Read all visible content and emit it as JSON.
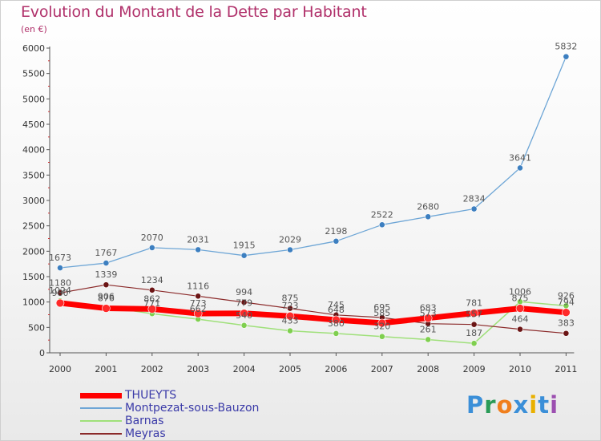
{
  "header": {
    "title": "Evolution du Montant de la Dette par Habitant",
    "subtitle": "(en €)"
  },
  "logo": {
    "text": "Proxiti"
  },
  "chart_data": {
    "type": "line",
    "title": "Evolution du Montant de la Dette par Habitant",
    "subtitle": "(en €)",
    "x": [
      "2000",
      "2001",
      "2002",
      "2003",
      "2004",
      "2005",
      "2006",
      "2007",
      "2008",
      "2009",
      "2010",
      "2011"
    ],
    "ylim": [
      0,
      6000
    ],
    "yticks": [
      0,
      500,
      1000,
      1500,
      2000,
      2500,
      3000,
      3500,
      4000,
      4500,
      5000,
      5500,
      6000
    ],
    "grid": false,
    "legend_position": "bottom-left",
    "series": [
      {
        "name": "Montpezat-sous-Bauzon",
        "color": "#6ea6d6",
        "marker": "#3d7fc0",
        "width": 1.3,
        "values": [
          1673,
          1767,
          2070,
          2031,
          1915,
          2029,
          2198,
          2522,
          2680,
          2834,
          3641,
          5832
        ],
        "labels": [
          "1673",
          "1767",
          "2070",
          "2031",
          "1915",
          "2029",
          "2198",
          "2522",
          "2680",
          "2834",
          "3641",
          "5832"
        ]
      },
      {
        "name": "Barnas",
        "color": "#9fe07a",
        "marker": "#7fcf4f",
        "width": 1.5,
        "values": [
          1024,
          906,
          771,
          662,
          540,
          433,
          380,
          320,
          261,
          187,
          1006,
          926
        ],
        "labels": [
          "1024",
          "906",
          "771",
          "662",
          "540",
          "433",
          "380",
          "320",
          "261",
          "187",
          "1006",
          "926"
        ]
      },
      {
        "name": "Meyras",
        "color": "#8b2a2a",
        "marker": "#6b1515",
        "width": 1.2,
        "values": [
          1180,
          1339,
          1234,
          1116,
          994,
          875,
          745,
          695,
          573,
          557,
          464,
          383
        ],
        "labels": [
          "1180",
          "1339",
          "1234",
          "1116",
          "994",
          "875",
          "745",
          "695",
          "573",
          "557",
          "464",
          "383"
        ]
      },
      {
        "name": "THUEYTS",
        "color": "#ff0000",
        "marker": "#ff2a2a",
        "width": 7,
        "values": [
          980,
          876,
          862,
          773,
          779,
          723,
          648,
          585,
          683,
          781,
          875,
          794
        ],
        "labels": [
          "980",
          "876",
          "862",
          "773",
          "779",
          "723",
          "648",
          "585",
          "683",
          "781",
          "875",
          "794"
        ]
      }
    ],
    "legend_order": [
      "THUEYTS",
      "Montpezat-sous-Bauzon",
      "Barnas",
      "Meyras"
    ]
  }
}
